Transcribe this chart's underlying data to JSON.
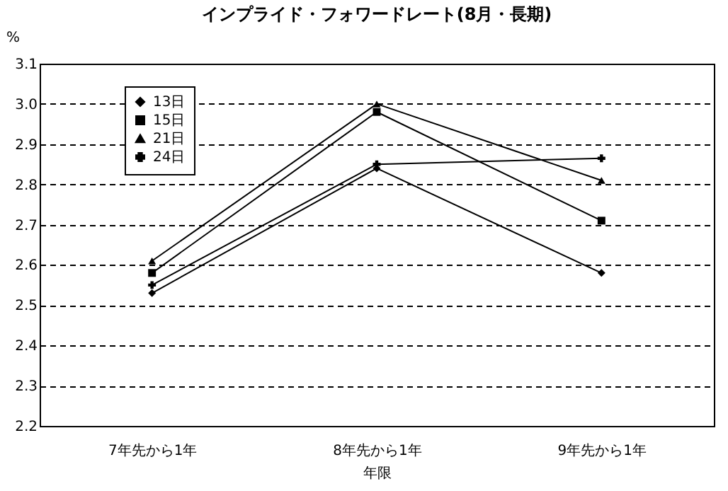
{
  "chart_data": {
    "type": "line",
    "title": "インプライド・フォワードレート(8月・長期)",
    "xlabel": "年限",
    "ylabel": "%",
    "categories": [
      "7年先から1年",
      "8年先から1年",
      "9年先から1年"
    ],
    "series": [
      {
        "name": "13日",
        "color": "#000000",
        "marker": "diamond",
        "values": [
          2.53,
          2.84,
          2.58
        ]
      },
      {
        "name": "15日",
        "color": "#000000",
        "marker": "square",
        "values": [
          2.58,
          2.98,
          2.71
        ]
      },
      {
        "name": "21日",
        "color": "#000000",
        "marker": "triangle",
        "values": [
          2.61,
          3.0,
          2.81
        ]
      },
      {
        "name": "24日",
        "color": "#000000",
        "marker": "cross",
        "values": [
          2.55,
          2.85,
          2.865
        ]
      }
    ],
    "ylim": [
      2.2,
      3.1
    ],
    "yticks": [
      2.2,
      2.3,
      2.4,
      2.5,
      2.6,
      2.7,
      2.8,
      2.9,
      {
        "value": 3.0,
        "label": "3.0"
      },
      3.1
    ],
    "grid": "y",
    "legend": "top left",
    "line_style": "solid"
  }
}
